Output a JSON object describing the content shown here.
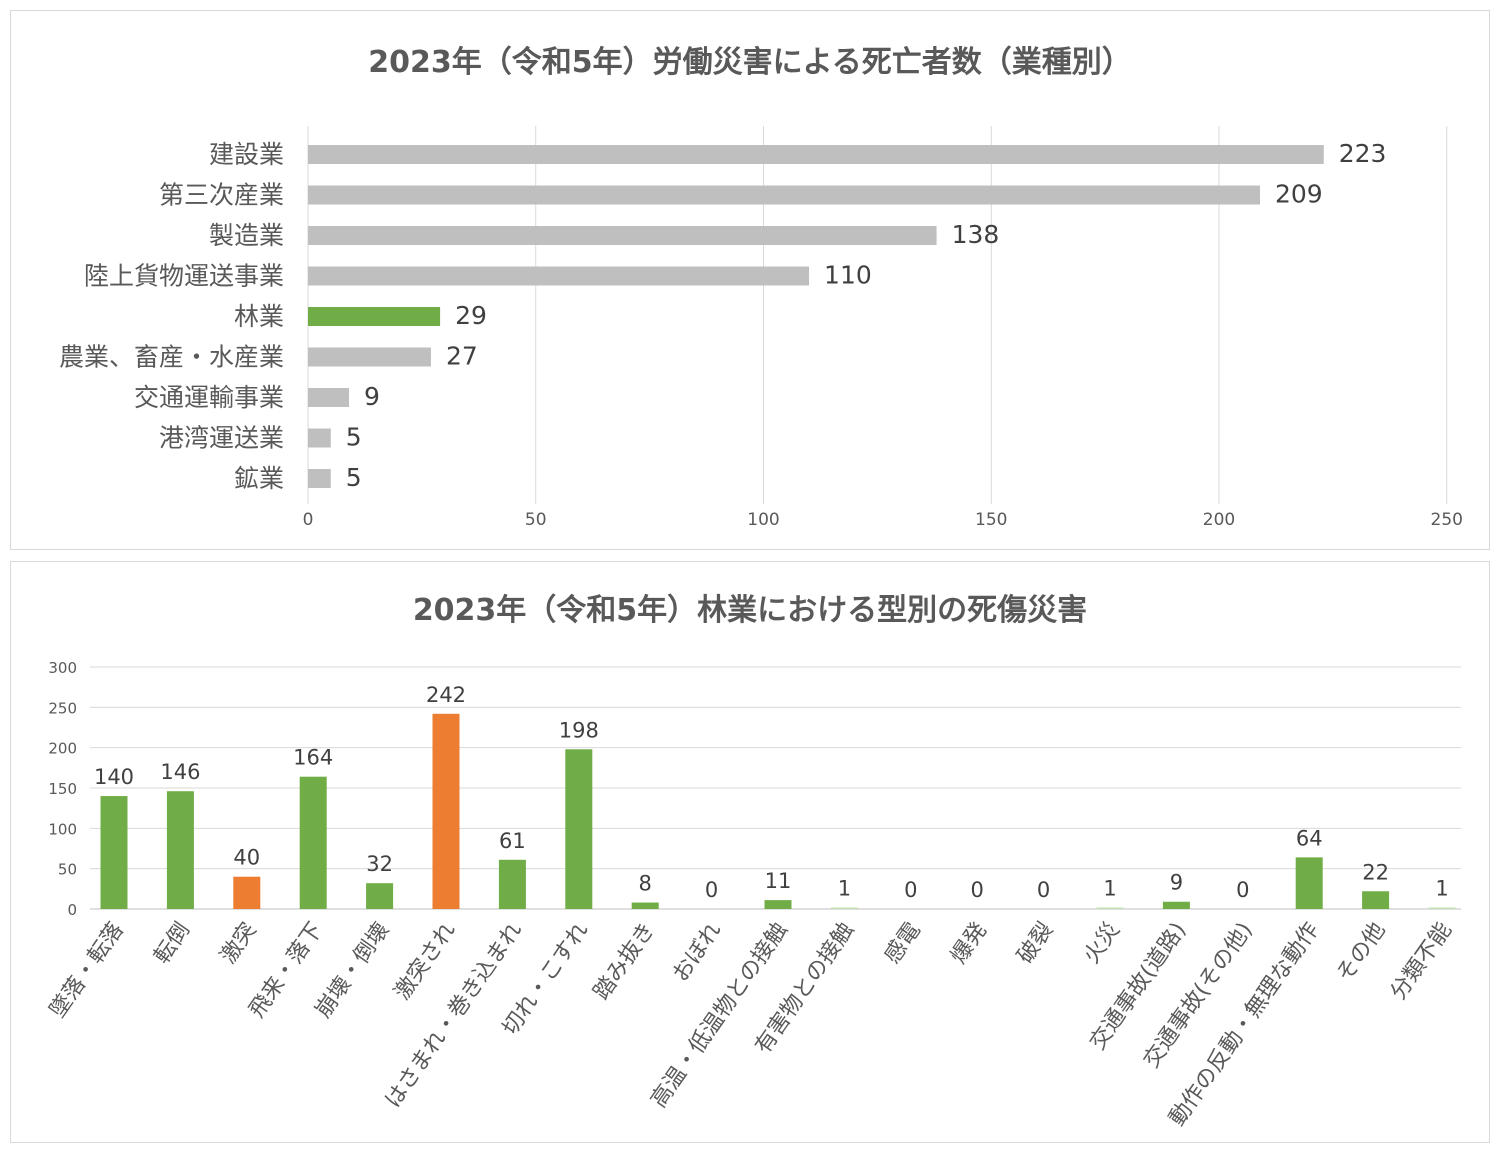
{
  "chart_data": [
    {
      "type": "bar",
      "orientation": "horizontal",
      "title": "2023年（令和5年）労働災害による死亡者数（業種別）",
      "categories": [
        "建設業",
        "第三次産業",
        "製造業",
        "陸上貨物運送事業",
        "林業",
        "農業、畜産・水産業",
        "交通運輸事業",
        "港湾運送業",
        "鉱業"
      ],
      "values": [
        223,
        209,
        138,
        110,
        29,
        27,
        9,
        5,
        5
      ],
      "highlight_index": 4,
      "colors": {
        "default": "#bfbfbf",
        "highlight": "#70ad47"
      },
      "xlim": [
        0,
        250
      ],
      "xticks": [
        0,
        50,
        100,
        150,
        200,
        250
      ],
      "grid": true,
      "legend": "none"
    },
    {
      "type": "bar",
      "title": "2023年（令和5年）林業における型別の死傷災害",
      "categories": [
        "墜落・転落",
        "転倒",
        "激突",
        "飛来・落下",
        "崩壊・倒壊",
        "激突され",
        "はさまれ・巻き込まれ",
        "切れ・こすれ",
        "踏み抜き",
        "おぼれ",
        "高温・低温物との接触",
        "有害物との接触",
        "感電",
        "爆発",
        "破裂",
        "火災",
        "交通事故(道路)",
        "交通事故(その他)",
        "動作の反動・無理な動作",
        "その他",
        "分類不能"
      ],
      "values": [
        140,
        146,
        40,
        164,
        32,
        242,
        61,
        198,
        8,
        0,
        11,
        1,
        0,
        0,
        0,
        1,
        9,
        0,
        64,
        22,
        1
      ],
      "highlight_indices": [
        2,
        5
      ],
      "colors": {
        "default": "#70ad47",
        "highlight": "#ed7d31",
        "small": "#c5e0b4"
      },
      "ylim": [
        0,
        300
      ],
      "yticks": [
        0,
        50,
        100,
        150,
        200,
        250,
        300
      ],
      "grid": true,
      "legend": "none"
    }
  ]
}
